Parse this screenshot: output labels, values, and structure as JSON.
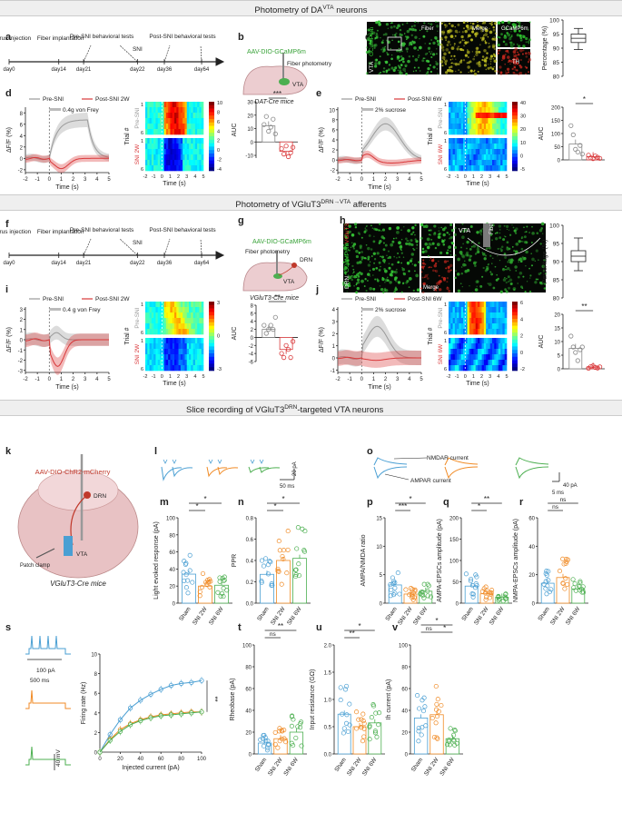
{
  "banners": {
    "top": "Photometry of DA",
    "top_sup": "VTA",
    "top_tail": " neurons",
    "mid": "Photometry of VGluT3",
    "mid_sup": "DRN→VTA",
    "mid_tail": " afferents",
    "slice": "Slice recording of VGluT3",
    "slice_sup": "DRN",
    "slice_tail": "-targeted VTA neurons"
  },
  "legend": {
    "sham": "Sham",
    "sni2w": "SNI 2W",
    "sni6w": "SNI 6W"
  },
  "colors": {
    "sham": "#4a9fd3",
    "sni2w": "#f08a24",
    "sni6w": "#4caf50",
    "pre": "#9a9a9a",
    "post": "#d9383a"
  },
  "panel_letters": [
    "a",
    "b",
    "c",
    "d",
    "e",
    "f",
    "g",
    "h",
    "i",
    "j",
    "k",
    "l",
    "m",
    "n",
    "o",
    "p",
    "q",
    "r",
    "s",
    "t",
    "u",
    "v"
  ],
  "timeline_a": {
    "events": [
      "Virus injection",
      "Fiber implantation",
      "Pre-SNI behavioral tests",
      "SNI",
      "Post-SNI behavioral tests"
    ],
    "days": [
      "day0",
      "day14",
      "day21",
      "day22",
      "day36",
      "day64"
    ]
  },
  "timeline_f": {
    "events": [
      "Virus injection",
      "Fiber implantation",
      "Pre-SNI behavioral tests",
      "SNI",
      "Post-SNI behavioral tests"
    ],
    "days": [
      "day0",
      "day14",
      "day21",
      "day22",
      "day36",
      "day64"
    ]
  },
  "panel_b": {
    "virus": "AAV-DIO-GCaMP6m",
    "fiber": "Fiber photometry",
    "region": "VTA",
    "mouse": "DAT-Cre mice"
  },
  "panel_c": {
    "label_vta": "VTA",
    "label_gcamp": "GCaMP6m",
    "fiber": "Fiber",
    "merge": "Merge",
    "gcamp": "GCaMP6m",
    "th": "TH",
    "ylabel": "Percentage (%)",
    "yticks": [
      "80",
      "85",
      "90",
      "95",
      "100"
    ]
  },
  "panel_g": {
    "virus": "AAV-DIO-GCaMP6m",
    "fiber": "Fiber photometry",
    "region1": "DRN",
    "region2": "VTA",
    "mouse": "VGluT3-Cre mice"
  },
  "panel_h": {
    "drn": "DRN",
    "gcamp": "GCaMP6m",
    "vglut3": "VGluT3",
    "merge": "Merge",
    "vta": "VTA",
    "fiber": "Fiber",
    "ylabel": "Percentage (%)",
    "yticks": [
      "80",
      "85",
      "90",
      "95",
      "100"
    ]
  },
  "photometry": {
    "d": {
      "legend_pre": "Pre-SNI",
      "legend_post": "Post-SNI 2W",
      "stim": "0.4g von Frey",
      "ylabel": "ΔF/F (%)",
      "xlabel": "Time (s)",
      "yticks": [
        "-2",
        "0",
        "2",
        "4",
        "6",
        "8"
      ],
      "xticks": [
        "-2",
        "-1",
        "0",
        "1",
        "2",
        "3",
        "4",
        "5"
      ]
    },
    "e": {
      "legend_pre": "Pre-SNI",
      "legend_post": "Post-SNI 6W",
      "stim": "2% sucrose",
      "ylabel": "ΔF/F (%)",
      "xlabel": "Time (s)",
      "yticks": [
        "-2",
        "0",
        "2",
        "4",
        "6",
        "8",
        "10"
      ],
      "xticks": [
        "-2",
        "-1",
        "0",
        "1",
        "2",
        "3",
        "4",
        "5"
      ]
    },
    "i": {
      "legend_pre": "Pre-SNI",
      "legend_post": "Post-SNI 2W",
      "stim": "0.4 g von Frey",
      "ylabel": "ΔF/F (%)",
      "xlabel": "Time (s)",
      "yticks": [
        "-3",
        "-2",
        "-1",
        "0",
        "1",
        "2",
        "3"
      ],
      "xticks": [
        "-2",
        "-1",
        "0",
        "1",
        "2",
        "3",
        "4",
        "5"
      ]
    },
    "j": {
      "legend_pre": "Pre-SNI",
      "legend_post": "Post-SNI 6W",
      "stim": "2% sucrose",
      "ylabel": "ΔF/F (%)",
      "xlabel": "Time (s)",
      "yticks": [
        "-1",
        "0",
        "1",
        "2",
        "3",
        "4"
      ],
      "xticks": [
        "-2",
        "-1",
        "0",
        "1",
        "2",
        "3",
        "4",
        "5"
      ]
    }
  },
  "heatmaps": {
    "d": {
      "top": "Pre-SNI",
      "bottom": "SNI 2W",
      "ylabel": "Trial #",
      "xlabel": "Time (s)",
      "cb": [
        "10",
        "8",
        "6",
        "4",
        "2",
        "0",
        "-2",
        "-4"
      ]
    },
    "e": {
      "top": "Pre-SNI",
      "bottom": "SNI 6W",
      "ylabel": "Trial #",
      "xlabel": "Time (s)",
      "cb": [
        "40",
        "30",
        "20",
        "10",
        "0",
        "-5"
      ]
    },
    "i": {
      "top": "Pre-SNI",
      "bottom": "SNI 2W",
      "ylabel": "Trial #",
      "xlabel": "Time (s)",
      "cb": [
        "3",
        "0",
        "-3"
      ]
    },
    "j": {
      "top": "Pre-SNI",
      "bottom": "SNI 6W",
      "ylabel": "Trial #",
      "xlabel": "Time (s)",
      "cb": [
        "6",
        "4",
        "2",
        "0",
        "-2"
      ]
    }
  },
  "auc": {
    "d": {
      "sig": "***",
      "ylabel": "AUC",
      "yticks": [
        "-10",
        "0",
        "10",
        "20",
        "30"
      ]
    },
    "e": {
      "sig": "*",
      "ylabel": "AUC",
      "yticks": [
        "0",
        "50",
        "100",
        "150",
        "200"
      ]
    },
    "i": {
      "sig": "**",
      "ylabel": "AUC",
      "yticks": [
        "-6",
        "-4",
        "-2",
        "0",
        "2",
        "4",
        "6",
        "8"
      ]
    },
    "j": {
      "sig": "**",
      "ylabel": "AUC",
      "yticks": [
        "0",
        "5",
        "10",
        "15",
        "20"
      ]
    }
  },
  "panel_k": {
    "virus": "AAV-DIO-ChR2-mCherry",
    "drn": "DRN",
    "vta": "VTA",
    "patch": "Patch clamp",
    "mouse": "VGluT3-Cre mice"
  },
  "panel_l": {
    "scale_y": "20 pA",
    "scale_x": "50 ms"
  },
  "panel_o": {
    "nmdar": "NMDAR current",
    "ampar": "AMPAR current",
    "scale_y": "40 pA",
    "scale_x": "5 ms"
  },
  "panel_s": {
    "step": "100 pA",
    "dur": "500 ms",
    "mv": "40 mV",
    "xlabel": "Injected current (pA)",
    "ylabel": "Firing rate (Hz)",
    "sig": "**",
    "xticks": [
      "0",
      "20",
      "40",
      "60",
      "80",
      "100"
    ],
    "yticks": [
      "0",
      "2",
      "4",
      "6",
      "8",
      "10"
    ]
  },
  "chart_data": [
    {
      "panel": "m",
      "type": "bar",
      "ylabel": "Light evoked response (pA)",
      "categories": [
        "Sham",
        "SNI 2W",
        "SNI 6W"
      ],
      "values": [
        34,
        20,
        21
      ],
      "yticks": [
        "0",
        "20",
        "40",
        "60",
        "80",
        "100"
      ],
      "ylim": [
        0,
        100
      ],
      "sigs": [
        "*",
        "*"
      ]
    },
    {
      "panel": "n",
      "type": "bar",
      "ylabel": "PPR",
      "categories": [
        "Sham",
        "SNI 2W",
        "SNI 6W"
      ],
      "values": [
        0.27,
        0.4,
        0.42
      ],
      "yticks": [
        "0.0",
        "0.2",
        "0.4",
        "0.6",
        "0.8"
      ],
      "ylim": [
        0,
        0.8
      ],
      "sigs": [
        "*",
        "*"
      ]
    },
    {
      "panel": "p",
      "type": "bar",
      "ylabel": "AMPA/NMDA ratio",
      "categories": [
        "Sham",
        "SNI 2W",
        "SNI 6W"
      ],
      "values": [
        3.2,
        1.6,
        2.1
      ],
      "yticks": [
        "0",
        "5",
        "10",
        "15"
      ],
      "ylim": [
        0,
        15
      ],
      "sigs": [
        "***",
        "*"
      ]
    },
    {
      "panel": "q",
      "type": "bar",
      "ylabel": "AMPA-EPSCs amplitude (pA)",
      "categories": [
        "Sham",
        "SNI 2W",
        "SNI 6W"
      ],
      "values": [
        40,
        22,
        14
      ],
      "yticks": [
        "0",
        "50",
        "100",
        "150",
        "200"
      ],
      "ylim": [
        0,
        200
      ],
      "sigs": [
        "*",
        "**"
      ]
    },
    {
      "panel": "r",
      "type": "bar",
      "ylabel": "NMPA-EPSCs amplitude (pA)",
      "categories": [
        "Sham",
        "SNI 2W",
        "SNI 6W"
      ],
      "values": [
        14,
        18,
        10
      ],
      "yticks": [
        "0",
        "20",
        "40",
        "60"
      ],
      "ylim": [
        0,
        60
      ],
      "sigs": [
        "ns",
        "ns"
      ]
    },
    {
      "panel": "t",
      "type": "bar",
      "ylabel": "Rheobase (pA)",
      "categories": [
        "Sham",
        "SNI 2W",
        "SNI 6W"
      ],
      "values": [
        10,
        14,
        20
      ],
      "yticks": [
        "0",
        "20",
        "40",
        "60",
        "80",
        "100"
      ],
      "ylim": [
        0,
        100
      ],
      "sigs": [
        "ns",
        "**"
      ]
    },
    {
      "panel": "u",
      "type": "bar",
      "ylabel": "Input resistance (GΩ)",
      "categories": [
        "Sham",
        "SNI 2W",
        "SNI 6W"
      ],
      "values": [
        0.73,
        0.5,
        0.57
      ],
      "yticks": [
        "0.0",
        "0.5",
        "1.0",
        "1.5",
        "2.0"
      ],
      "ylim": [
        0,
        2
      ],
      "sigs": [
        "**",
        "*"
      ]
    },
    {
      "panel": "v",
      "type": "bar",
      "ylabel": "Ih current (pA)",
      "categories": [
        "Sham",
        "SNI 2W",
        "SNI 6W"
      ],
      "values": [
        33,
        36,
        14
      ],
      "yticks": [
        "0",
        "20",
        "40",
        "60",
        "80",
        "100"
      ],
      "ylim": [
        0,
        100
      ],
      "sigs": [
        "ns",
        "*",
        "*"
      ]
    },
    {
      "panel": "s",
      "type": "line",
      "xlabel": "Injected current (pA)",
      "ylabel": "Firing rate (Hz)",
      "x": [
        0,
        10,
        20,
        30,
        40,
        50,
        60,
        70,
        80,
        90,
        100
      ],
      "series": [
        {
          "name": "Sham",
          "values": [
            0,
            1.8,
            3.3,
            4.5,
            5.3,
            5.9,
            6.4,
            6.8,
            7.0,
            7.1,
            7.3
          ]
        },
        {
          "name": "SNI 2W",
          "values": [
            0,
            1.3,
            2.3,
            2.9,
            3.3,
            3.6,
            3.8,
            3.9,
            4.0,
            4.1,
            4.1
          ]
        },
        {
          "name": "SNI 6W",
          "values": [
            0,
            1.2,
            2.1,
            2.8,
            3.2,
            3.5,
            3.7,
            3.8,
            3.9,
            4.0,
            4.1
          ]
        }
      ],
      "ylim": [
        0,
        10
      ]
    }
  ]
}
